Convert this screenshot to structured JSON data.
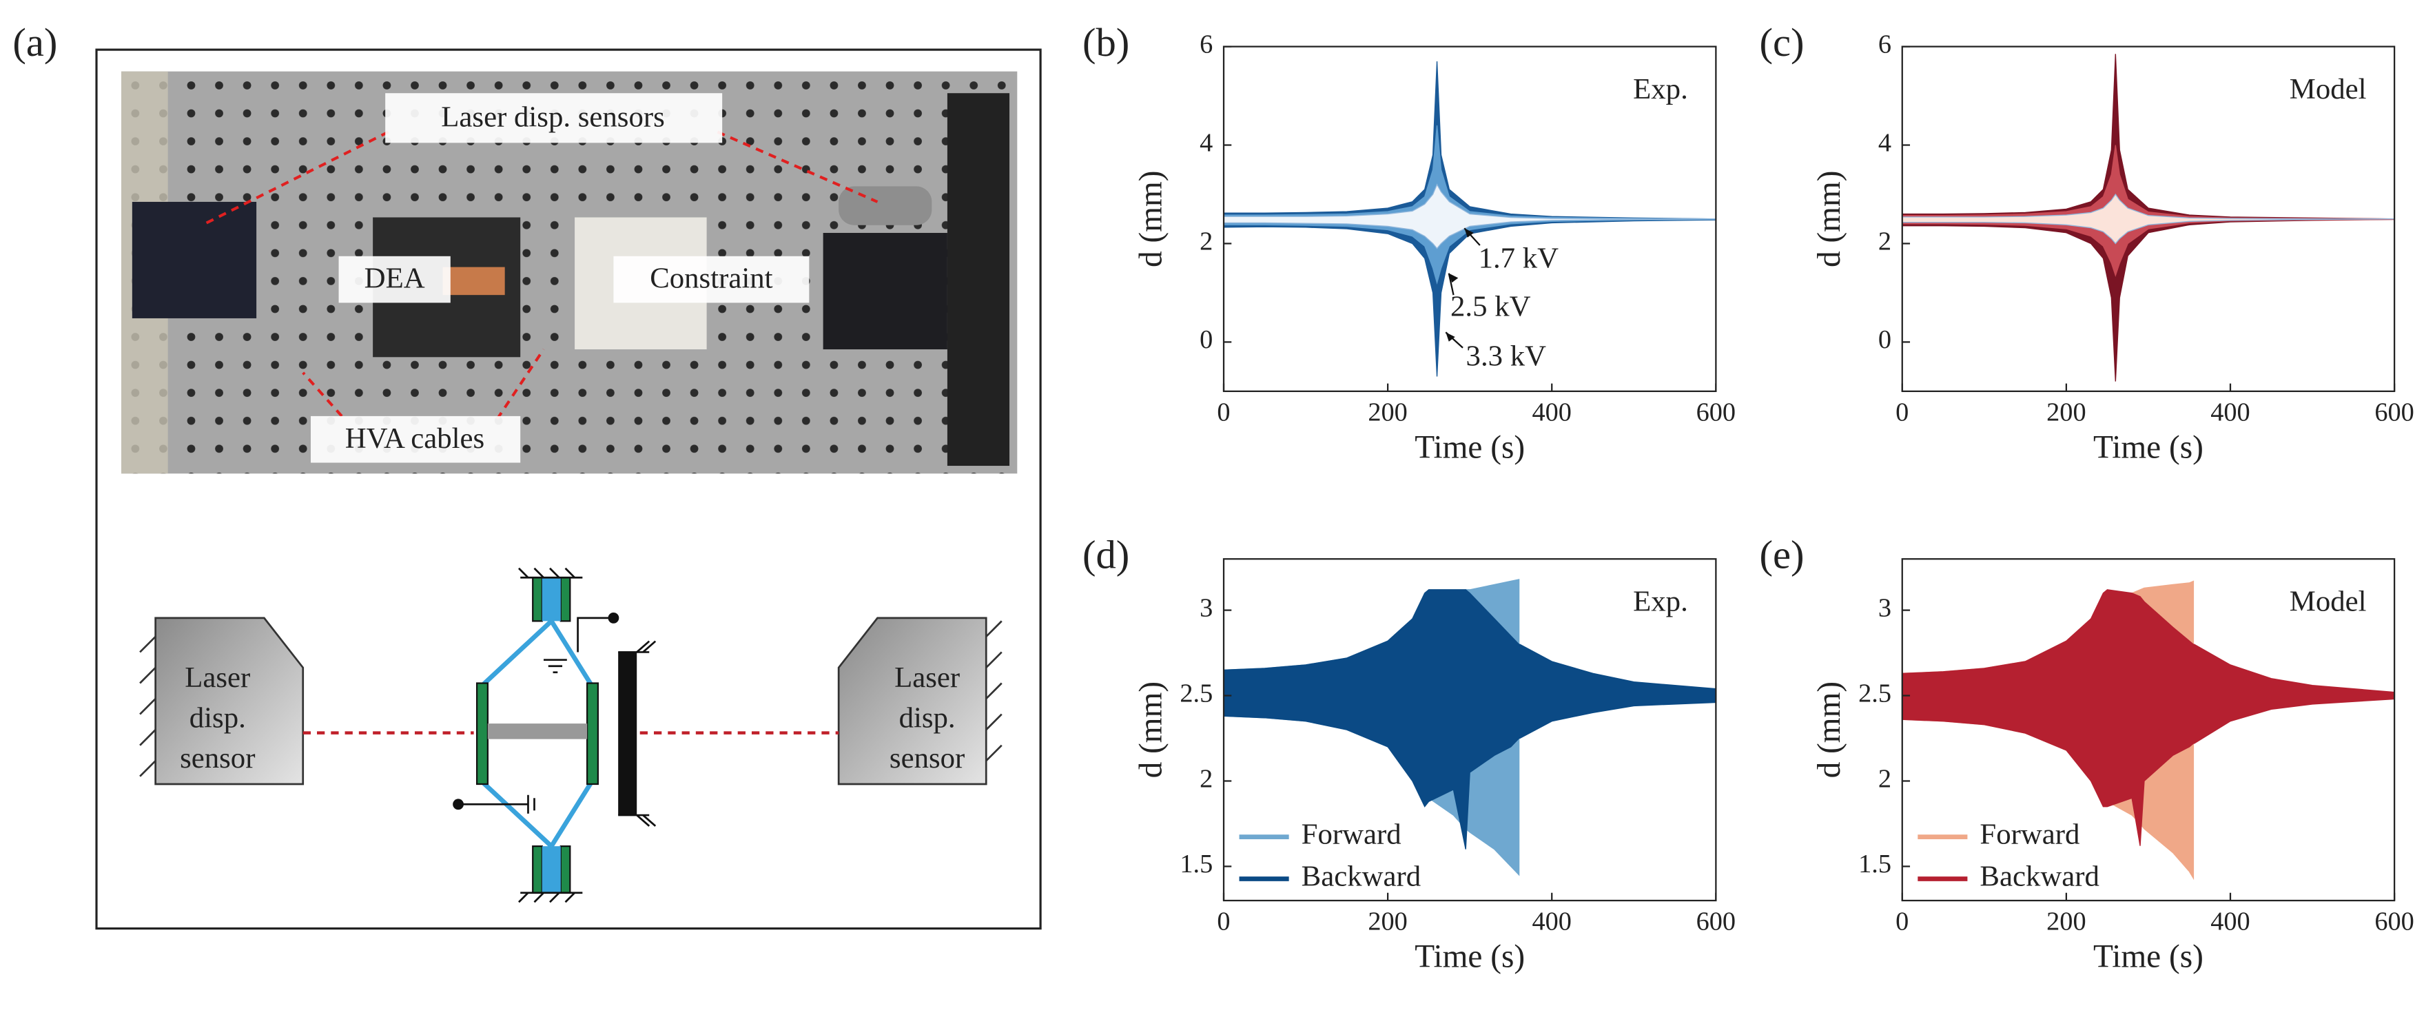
{
  "panel_labels": [
    "(a)",
    "(b)",
    "(c)",
    "(d)",
    "(e)"
  ],
  "photo": {
    "labels": [
      "Laser disp. sensors",
      "DEA",
      "Constraint",
      "HVA cables"
    ]
  },
  "schematic": {
    "left_sensor": [
      "Laser",
      "disp.",
      "sensor"
    ],
    "right_sensor": [
      "Laser",
      "disp.",
      "sensor"
    ]
  },
  "chart_data": [
    {
      "type": "area",
      "xlabel": "Time (s)",
      "ylabel": "d (mm)",
      "annotation": "Exp.",
      "xlim": [
        0,
        600
      ],
      "xticks": [
        0,
        200,
        400,
        600
      ],
      "ylim": [
        -1,
        6
      ],
      "yticks": [
        0,
        2,
        4,
        6
      ],
      "x": [
        0,
        50,
        100,
        150,
        200,
        230,
        245,
        255,
        260,
        265,
        275,
        300,
        350,
        400,
        500,
        600
      ],
      "series": [
        {
          "name": "3.3 kV",
          "color": "#1a5a98",
          "upper": [
            2.62,
            2.62,
            2.63,
            2.65,
            2.72,
            2.85,
            3.1,
            3.8,
            5.7,
            3.8,
            3.1,
            2.75,
            2.6,
            2.55,
            2.52,
            2.5
          ],
          "lower": [
            2.33,
            2.34,
            2.33,
            2.3,
            2.2,
            2.0,
            1.7,
            1.0,
            -0.7,
            1.0,
            1.8,
            2.2,
            2.35,
            2.42,
            2.46,
            2.48
          ]
        },
        {
          "name": "2.5 kV",
          "color": "#5e9ed1",
          "upper": [
            2.58,
            2.58,
            2.59,
            2.6,
            2.65,
            2.75,
            2.95,
            3.5,
            4.4,
            3.5,
            2.95,
            2.65,
            2.56,
            2.53,
            2.51,
            2.5
          ],
          "lower": [
            2.38,
            2.38,
            2.37,
            2.35,
            2.28,
            2.15,
            1.95,
            1.5,
            1.2,
            1.5,
            1.95,
            2.28,
            2.4,
            2.45,
            2.48,
            2.49
          ]
        },
        {
          "name": "1.7 kV",
          "color": "#eef4fa",
          "upper": [
            2.55,
            2.55,
            2.55,
            2.56,
            2.6,
            2.66,
            2.8,
            3.0,
            3.2,
            3.05,
            2.85,
            2.6,
            2.53,
            2.51,
            2.5,
            2.5
          ],
          "lower": [
            2.42,
            2.42,
            2.41,
            2.4,
            2.35,
            2.28,
            2.15,
            2.0,
            1.9,
            2.0,
            2.15,
            2.35,
            2.44,
            2.47,
            2.49,
            2.5
          ]
        }
      ]
    },
    {
      "type": "area",
      "xlabel": "Time (s)",
      "ylabel": "d (mm)",
      "annotation": "Model",
      "xlim": [
        0,
        600
      ],
      "xticks": [
        0,
        200,
        400,
        600
      ],
      "ylim": [
        -1,
        6
      ],
      "yticks": [
        0,
        2,
        4,
        6
      ],
      "x": [
        0,
        50,
        100,
        150,
        200,
        230,
        245,
        255,
        260,
        265,
        275,
        300,
        350,
        400,
        500,
        600
      ],
      "series": [
        {
          "color": "#7a1424",
          "upper": [
            2.6,
            2.6,
            2.61,
            2.63,
            2.7,
            2.85,
            3.1,
            3.9,
            5.85,
            3.9,
            3.1,
            2.72,
            2.58,
            2.54,
            2.52,
            2.5
          ],
          "lower": [
            2.36,
            2.36,
            2.35,
            2.32,
            2.22,
            2.0,
            1.7,
            0.9,
            -0.8,
            0.9,
            1.75,
            2.22,
            2.38,
            2.44,
            2.47,
            2.49
          ]
        },
        {
          "color": "#c84a55",
          "upper": [
            2.57,
            2.57,
            2.58,
            2.6,
            2.65,
            2.75,
            2.95,
            3.4,
            4.0,
            3.4,
            2.9,
            2.64,
            2.55,
            2.52,
            2.51,
            2.5
          ],
          "lower": [
            2.4,
            2.4,
            2.39,
            2.37,
            2.3,
            2.15,
            1.95,
            1.6,
            1.35,
            1.6,
            2.0,
            2.3,
            2.42,
            2.46,
            2.48,
            2.49
          ]
        },
        {
          "color": "#fbe3da",
          "upper": [
            2.54,
            2.54,
            2.54,
            2.55,
            2.58,
            2.63,
            2.72,
            2.88,
            3.0,
            2.88,
            2.72,
            2.57,
            2.52,
            2.51,
            2.5,
            2.5
          ],
          "lower": [
            2.43,
            2.43,
            2.43,
            2.42,
            2.38,
            2.32,
            2.24,
            2.1,
            2.0,
            2.1,
            2.24,
            2.38,
            2.45,
            2.47,
            2.49,
            2.5
          ]
        }
      ]
    },
    {
      "type": "area",
      "xlabel": "Time (s)",
      "ylabel": "d (mm)",
      "annotation": "Exp.",
      "legend": "lower left",
      "xlim": [
        0,
        600
      ],
      "xticks": [
        0,
        200,
        400,
        600
      ],
      "ylim": [
        1.3,
        3.3
      ],
      "yticks": [
        1.5,
        2,
        2.5,
        3
      ],
      "x": [
        0,
        50,
        100,
        150,
        200,
        230,
        245,
        250,
        280,
        295,
        300,
        330,
        350,
        360,
        361,
        400,
        450,
        500,
        600
      ],
      "series": [
        {
          "name": "Forward",
          "color": "#6fa8d0",
          "upper": [
            2.65,
            2.66,
            2.68,
            2.72,
            2.8,
            2.9,
            2.98,
            3.02,
            3.1,
            3.12,
            3.12,
            3.15,
            3.17,
            3.18,
            null,
            null,
            null,
            null,
            null
          ],
          "lower": [
            2.38,
            2.37,
            2.35,
            2.3,
            2.2,
            2.05,
            1.95,
            1.9,
            1.8,
            1.72,
            1.7,
            1.6,
            1.5,
            1.45,
            null,
            null,
            null,
            null,
            null
          ]
        },
        {
          "name": "Backward",
          "color": "#0b4a85",
          "upper": [
            2.65,
            2.66,
            2.68,
            2.72,
            2.82,
            2.95,
            3.1,
            3.12,
            3.12,
            3.12,
            3.1,
            2.95,
            2.85,
            2.8,
            2.8,
            2.7,
            2.63,
            2.58,
            2.54
          ],
          "lower": [
            2.38,
            2.37,
            2.35,
            2.3,
            2.2,
            2.0,
            1.85,
            1.88,
            1.95,
            1.6,
            2.05,
            2.15,
            2.2,
            2.25,
            2.25,
            2.35,
            2.4,
            2.44,
            2.46
          ]
        }
      ]
    },
    {
      "type": "area",
      "xlabel": "Time (s)",
      "ylabel": "d (mm)",
      "annotation": "Model",
      "legend": "lower left",
      "xlim": [
        0,
        600
      ],
      "xticks": [
        0,
        200,
        400,
        600
      ],
      "ylim": [
        1.3,
        3.3
      ],
      "yticks": [
        1.5,
        2,
        2.5,
        3
      ],
      "x": [
        0,
        50,
        100,
        150,
        200,
        230,
        245,
        250,
        280,
        290,
        295,
        330,
        350,
        355,
        356,
        400,
        450,
        500,
        600
      ],
      "series": [
        {
          "name": "Forward",
          "color": "#f0a888",
          "upper": [
            2.63,
            2.64,
            2.66,
            2.7,
            2.8,
            2.92,
            3.0,
            3.05,
            3.1,
            3.12,
            3.13,
            3.15,
            3.16,
            3.17,
            null,
            null,
            null,
            null,
            null
          ],
          "lower": [
            2.36,
            2.35,
            2.33,
            2.28,
            2.18,
            2.02,
            1.92,
            1.88,
            1.8,
            1.75,
            1.72,
            1.58,
            1.47,
            1.43,
            null,
            null,
            null,
            null,
            null
          ]
        },
        {
          "name": "Backward",
          "color": "#b52030",
          "upper": [
            2.63,
            2.64,
            2.66,
            2.7,
            2.82,
            2.95,
            3.1,
            3.12,
            3.1,
            3.08,
            3.05,
            2.9,
            2.82,
            2.8,
            2.8,
            2.68,
            2.6,
            2.56,
            2.52
          ],
          "lower": [
            2.36,
            2.35,
            2.33,
            2.28,
            2.18,
            2.0,
            1.85,
            1.85,
            1.9,
            1.62,
            2.0,
            2.15,
            2.2,
            2.22,
            2.22,
            2.35,
            2.42,
            2.45,
            2.48
          ]
        }
      ]
    }
  ]
}
